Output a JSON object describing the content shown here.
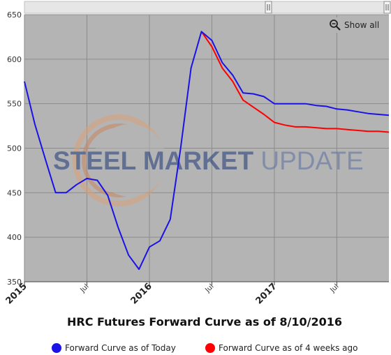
{
  "chart_data": {
    "type": "line",
    "title": "HRC Futures Forward Curve as of 8/10/2016",
    "xlabel": "",
    "ylabel": "",
    "ylim": [
      350,
      650
    ],
    "yticks": [
      350,
      400,
      450,
      500,
      550,
      600,
      650
    ],
    "xlim": [
      "2015-01",
      "2017-12"
    ],
    "xticks": [
      {
        "label": "2015",
        "x": "2015-01",
        "major": true
      },
      {
        "label": "Jul",
        "x": "2015-07",
        "major": false
      },
      {
        "label": "2016",
        "x": "2016-01",
        "major": true
      },
      {
        "label": "Jul",
        "x": "2016-07",
        "major": false
      },
      {
        "label": "2017",
        "x": "2017-01",
        "major": true
      },
      {
        "label": "Jul",
        "x": "2017-07",
        "major": false
      }
    ],
    "grid": true,
    "legend_placement": "bottom",
    "series": [
      {
        "name": "Forward Curve as of Today",
        "color": "#1a12e6",
        "points": [
          [
            "2015-01",
            575
          ],
          [
            "2015-02",
            527
          ],
          [
            "2015-03",
            488
          ],
          [
            "2015-04",
            450
          ],
          [
            "2015-05",
            450
          ],
          [
            "2015-06",
            459
          ],
          [
            "2015-07",
            466
          ],
          [
            "2015-08",
            464
          ],
          [
            "2015-09",
            447
          ],
          [
            "2015-10",
            411
          ],
          [
            "2015-11",
            380
          ],
          [
            "2015-12",
            364
          ],
          [
            "2016-01",
            389
          ],
          [
            "2016-02",
            396
          ],
          [
            "2016-03",
            420
          ],
          [
            "2016-04",
            500
          ],
          [
            "2016-05",
            590
          ],
          [
            "2016-06",
            631
          ],
          [
            "2016-07",
            621
          ],
          [
            "2016-08",
            596
          ],
          [
            "2016-09",
            582
          ],
          [
            "2016-10",
            562
          ],
          [
            "2016-11",
            561
          ],
          [
            "2016-12",
            558
          ],
          [
            "2017-01",
            550
          ],
          [
            "2017-02",
            550
          ],
          [
            "2017-03",
            550
          ],
          [
            "2017-04",
            550
          ],
          [
            "2017-05",
            548
          ],
          [
            "2017-06",
            547
          ],
          [
            "2017-07",
            544
          ],
          [
            "2017-08",
            543
          ],
          [
            "2017-09",
            541
          ],
          [
            "2017-10",
            539
          ],
          [
            "2017-11",
            538
          ],
          [
            "2017-12",
            537
          ]
        ]
      },
      {
        "name": "Forward Curve as of 4 weeks ago",
        "color": "#ff0000",
        "points": [
          [
            "2016-06",
            631
          ],
          [
            "2016-07",
            614
          ],
          [
            "2016-08",
            590
          ],
          [
            "2016-09",
            575
          ],
          [
            "2016-10",
            554
          ],
          [
            "2016-11",
            546
          ],
          [
            "2016-12",
            538
          ],
          [
            "2017-01",
            529
          ],
          [
            "2017-02",
            526
          ],
          [
            "2017-03",
            524
          ],
          [
            "2017-04",
            524
          ],
          [
            "2017-05",
            523
          ],
          [
            "2017-06",
            522
          ],
          [
            "2017-07",
            522
          ],
          [
            "2017-08",
            521
          ],
          [
            "2017-09",
            520
          ],
          [
            "2017-10",
            519
          ],
          [
            "2017-11",
            519
          ],
          [
            "2017-12",
            518
          ]
        ]
      }
    ],
    "plot_background": "#b4b4b4",
    "grid_color": "#8c8c8c"
  },
  "controls": {
    "show_all_label": "Show all",
    "zoom_icon": "zoom-out-magnifier-icon"
  },
  "watermark": {
    "text_left": "STEEL ",
    "text_mid": "MARKET",
    "text_right": " UPDATE",
    "logo_icon": "crescent-logo-icon"
  }
}
